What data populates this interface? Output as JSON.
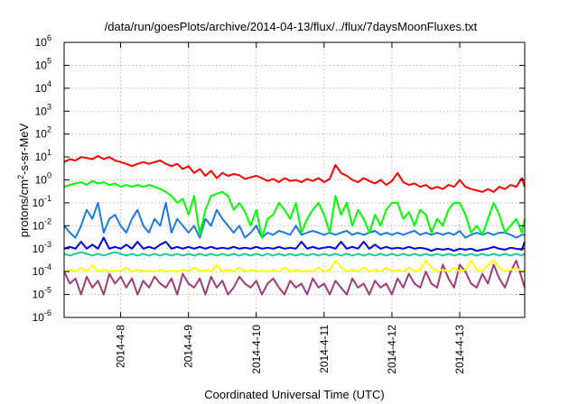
{
  "chart_data": {
    "type": "line",
    "title": "/data/run/goesPlots/archive/2014-04-13/flux/../flux/7daysMoonFluxes.txt",
    "xlabel": "Coordinated Universal Time (UTC)",
    "ylabel": {
      "base": "protons/cm",
      "sup": "2",
      "rest": "-s-sr-MeV"
    },
    "y_scale": "log",
    "y_exponent_range": [
      -6,
      6
    ],
    "x_range": [
      "2014-04-07T04:00",
      "2014-04-13T23:00"
    ],
    "x_ticks": [
      {
        "label": "2014-4-8",
        "date": "2014-04-08"
      },
      {
        "label": "2014-4-9",
        "date": "2014-04-09"
      },
      {
        "label": "2014-4-10",
        "date": "2014-04-10"
      },
      {
        "label": "2014-4-11",
        "date": "2014-04-11"
      },
      {
        "label": "2014-4-12",
        "date": "2014-04-12"
      },
      {
        "label": "2014-4-13",
        "date": "2014-04-13"
      }
    ],
    "y_ticks": [
      {
        "base": "10",
        "exp": "6"
      },
      {
        "base": "10",
        "exp": "5"
      },
      {
        "base": "10",
        "exp": "4"
      },
      {
        "base": "10",
        "exp": "3"
      },
      {
        "base": "10",
        "exp": "2"
      },
      {
        "base": "10",
        "exp": "1"
      },
      {
        "base": "10",
        "exp": "0"
      },
      {
        "base": "10",
        "exp": "-1"
      },
      {
        "base": "10",
        "exp": "-2"
      },
      {
        "base": "10",
        "exp": "-3"
      },
      {
        "base": "10",
        "exp": "-4"
      },
      {
        "base": "10",
        "exp": "-5"
      },
      {
        "base": "10",
        "exp": "-6"
      }
    ],
    "grid": true,
    "x": [
      "2014-04-07T04:00",
      "2014-04-07T06:00",
      "2014-04-07T08:00",
      "2014-04-07T10:00",
      "2014-04-07T12:00",
      "2014-04-07T14:00",
      "2014-04-07T16:00",
      "2014-04-07T18:00",
      "2014-04-07T20:00",
      "2014-04-07T22:00",
      "2014-04-08T00:00",
      "2014-04-08T02:00",
      "2014-04-08T04:00",
      "2014-04-08T06:00",
      "2014-04-08T08:00",
      "2014-04-08T10:00",
      "2014-04-08T12:00",
      "2014-04-08T14:00",
      "2014-04-08T16:00",
      "2014-04-08T18:00",
      "2014-04-08T20:00",
      "2014-04-08T22:00",
      "2014-04-09T00:00",
      "2014-04-09T02:00",
      "2014-04-09T04:00",
      "2014-04-09T06:00",
      "2014-04-09T08:00",
      "2014-04-09T10:00",
      "2014-04-09T12:00",
      "2014-04-09T14:00",
      "2014-04-09T16:00",
      "2014-04-09T18:00",
      "2014-04-09T20:00",
      "2014-04-09T22:00",
      "2014-04-10T00:00",
      "2014-04-10T02:00",
      "2014-04-10T04:00",
      "2014-04-10T06:00",
      "2014-04-10T08:00",
      "2014-04-10T10:00",
      "2014-04-10T12:00",
      "2014-04-10T14:00",
      "2014-04-10T16:00",
      "2014-04-10T18:00",
      "2014-04-10T20:00",
      "2014-04-10T22:00",
      "2014-04-11T00:00",
      "2014-04-11T02:00",
      "2014-04-11T04:00",
      "2014-04-11T06:00",
      "2014-04-11T08:00",
      "2014-04-11T10:00",
      "2014-04-11T12:00",
      "2014-04-11T14:00",
      "2014-04-11T16:00",
      "2014-04-11T18:00",
      "2014-04-11T20:00",
      "2014-04-11T22:00",
      "2014-04-12T00:00",
      "2014-04-12T02:00",
      "2014-04-12T04:00",
      "2014-04-12T06:00",
      "2014-04-12T08:00",
      "2014-04-12T10:00",
      "2014-04-12T12:00",
      "2014-04-12T14:00",
      "2014-04-12T16:00",
      "2014-04-12T18:00",
      "2014-04-12T20:00",
      "2014-04-12T22:00",
      "2014-04-13T00:00",
      "2014-04-13T02:00",
      "2014-04-13T04:00",
      "2014-04-13T06:00",
      "2014-04-13T08:00",
      "2014-04-13T10:00",
      "2014-04-13T12:00",
      "2014-04-13T14:00",
      "2014-04-13T16:00",
      "2014-04-13T18:00",
      "2014-04-13T20:00",
      "2014-04-13T22:00",
      "2014-04-13T23:00"
    ],
    "series": [
      {
        "color": "#ff0000",
        "values": [
          6,
          8,
          7,
          10,
          9,
          8,
          11,
          8,
          10,
          7,
          6,
          5,
          4,
          5,
          6,
          5,
          6,
          7,
          5,
          4,
          5,
          3,
          4,
          2,
          3,
          1.5,
          2.5,
          1.2,
          2,
          1.5,
          1.8,
          1.6,
          1.1,
          1.3,
          1.5,
          1.2,
          0.9,
          1.1,
          0.8,
          1.2,
          0.9,
          1.0,
          0.8,
          1.1,
          0.9,
          1.2,
          0.8,
          1.1,
          4.5,
          2.0,
          1.5,
          1.0,
          0.8,
          1.2,
          0.9,
          0.7,
          1.0,
          0.6,
          0.9,
          2.0,
          0.8,
          0.6,
          0.7,
          0.5,
          0.6,
          0.4,
          0.5,
          0.4,
          0.6,
          0.5,
          1.0,
          0.5,
          0.4,
          0.35,
          0.3,
          0.4,
          0.3,
          0.5,
          0.4,
          0.6,
          0.5,
          1.2,
          0.5
        ]
      },
      {
        "color": "#00ff00",
        "values": [
          0.5,
          0.6,
          0.7,
          0.8,
          0.6,
          0.9,
          0.7,
          0.8,
          0.6,
          0.7,
          0.5,
          0.6,
          0.5,
          0.6,
          0.5,
          0.6,
          0.5,
          0.4,
          0.3,
          0.2,
          0.1,
          0.15,
          0.03,
          0.2,
          0.004,
          0.05,
          0.2,
          0.25,
          0.3,
          0.2,
          0.05,
          0.1,
          0.04,
          0.01,
          0.05,
          0.003,
          0.02,
          0.03,
          0.1,
          0.05,
          0.02,
          0.1,
          0.005,
          0.02,
          0.05,
          0.1,
          0.03,
          0.005,
          0.2,
          0.03,
          0.1,
          0.01,
          0.05,
          0.02,
          0.005,
          0.03,
          0.01,
          0.05,
          0.1,
          0.1,
          0.02,
          0.04,
          0.01,
          0.05,
          0.03,
          0.005,
          0.02,
          0.01,
          0.05,
          0.1,
          0.1,
          0.03,
          0.005,
          0.01,
          0.004,
          0.02,
          0.1,
          0.03,
          0.005,
          0.01,
          0.02,
          0.005,
          0.02
        ]
      },
      {
        "color": "#1e78e6",
        "values": [
          0.01,
          0.005,
          0.003,
          0.01,
          0.05,
          0.02,
          0.1,
          0.005,
          0.02,
          0.03,
          0.01,
          0.005,
          0.02,
          0.05,
          0.01,
          0.005,
          0.02,
          0.01,
          0.1,
          0.005,
          0.02,
          0.01,
          0.005,
          0.01,
          0.003,
          0.02,
          0.01,
          0.05,
          0.02,
          0.01,
          0.005,
          0.01,
          0.003,
          0.005,
          0.01,
          0.003,
          0.005,
          0.004,
          0.006,
          0.005,
          0.004,
          0.01,
          0.004,
          0.005,
          0.006,
          0.005,
          0.004,
          0.005,
          0.004,
          0.005,
          0.006,
          0.004,
          0.005,
          0.004,
          0.005,
          0.006,
          0.004,
          0.005,
          0.004,
          0.005,
          0.004,
          0.005,
          0.006,
          0.004,
          0.005,
          0.004,
          0.005,
          0.004,
          0.005,
          0.004,
          0.006,
          0.003,
          0.004,
          0.005,
          0.004,
          0.005,
          0.004,
          0.005,
          0.005,
          0.004,
          0.003,
          0.004,
          0.004
        ]
      },
      {
        "color": "#0000dc",
        "values": [
          0.001,
          0.0012,
          0.001,
          0.002,
          0.001,
          0.0015,
          0.001,
          0.003,
          0.001,
          0.0012,
          0.001,
          0.0015,
          0.001,
          0.002,
          0.001,
          0.0012,
          0.001,
          0.0015,
          0.002,
          0.001,
          0.0012,
          0.001,
          0.0012,
          0.001,
          0.0012,
          0.001,
          0.0012,
          0.001,
          0.0011,
          0.001,
          0.0012,
          0.001,
          0.0011,
          0.001,
          0.0012,
          0.001,
          0.0011,
          0.001,
          0.0012,
          0.001,
          0.0011,
          0.001,
          0.002,
          0.001,
          0.0012,
          0.001,
          0.0011,
          0.0012,
          0.001,
          0.002,
          0.001,
          0.0012,
          0.001,
          0.002,
          0.001,
          0.0015,
          0.001,
          0.0012,
          0.001,
          0.0011,
          0.001,
          0.0012,
          0.001,
          0.0011,
          0.001,
          0.0008,
          0.001,
          0.0009,
          0.001,
          0.0008,
          0.001,
          0.0009,
          0.001,
          0.0008,
          0.0009,
          0.001,
          0.0012,
          0.001,
          0.0009,
          0.0011,
          0.001,
          0.0009,
          0.002
        ]
      },
      {
        "color": "#1ec896",
        "values": [
          0.0006,
          0.0005,
          0.0006,
          0.0007,
          0.0006,
          0.0005,
          0.0006,
          0.0005,
          0.0006,
          0.0007,
          0.0006,
          0.0005,
          0.0006,
          0.0005,
          0.0006,
          0.0005,
          0.0006,
          0.0005,
          0.0006,
          0.0005,
          0.0006,
          0.0005,
          0.0006,
          0.0005,
          0.0006,
          0.0005,
          0.0006,
          0.0005,
          0.0006,
          0.0005,
          0.0006,
          0.0005,
          0.0006,
          0.0005,
          0.0006,
          0.0005,
          0.0006,
          0.0005,
          0.0006,
          0.0005,
          0.0006,
          0.0005,
          0.0006,
          0.0005,
          0.0006,
          0.0005,
          0.0006,
          0.0005,
          0.0006,
          0.0005,
          0.0006,
          0.0005,
          0.0006,
          0.0005,
          0.0006,
          0.0005,
          0.0006,
          0.0005,
          0.0006,
          0.0005,
          0.0006,
          0.0005,
          0.0006,
          0.0005,
          0.0006,
          0.0005,
          0.0006,
          0.0005,
          0.0006,
          0.0005,
          0.0006,
          0.0005,
          0.0006,
          0.0005,
          0.0006,
          0.0005,
          0.0006,
          0.0005,
          0.0006,
          0.0005,
          0.0006,
          0.0005,
          0.0006
        ]
      },
      {
        "color": "#ffff00",
        "values": [
          0.0001,
          0.00012,
          0.0001,
          0.00015,
          0.0001,
          0.0002,
          0.0001,
          0.00012,
          0.0001,
          0.00011,
          0.0001,
          0.00015,
          0.0001,
          0.00012,
          0.0001,
          0.00011,
          0.0001,
          0.00012,
          0.0001,
          0.00011,
          0.0001,
          0.00012,
          0.0001,
          0.00015,
          0.0001,
          0.00012,
          0.0001,
          0.0002,
          0.0001,
          0.00012,
          0.0001,
          0.00015,
          0.0001,
          0.00012,
          0.0001,
          0.00011,
          0.0001,
          0.00012,
          0.0001,
          0.00015,
          0.0001,
          0.00012,
          0.0001,
          0.00011,
          0.0001,
          0.00015,
          0.0001,
          0.00012,
          0.0003,
          0.00015,
          0.0001,
          0.00012,
          0.0001,
          0.00015,
          0.0001,
          0.00012,
          0.0001,
          0.00015,
          0.0001,
          0.00012,
          0.0001,
          0.00015,
          0.0001,
          0.00012,
          0.0003,
          0.00015,
          0.0001,
          0.00012,
          0.0001,
          0.00015,
          0.0001,
          0.00012,
          0.0003,
          0.00012,
          0.0001,
          0.0002,
          0.0003,
          0.00015,
          0.0001,
          0.00012,
          0.00015,
          0.0001,
          0.00012
        ]
      },
      {
        "color": "#a03c78",
        "values": [
          0.0001,
          3e-05,
          5e-05,
          1e-05,
          6e-05,
          2e-05,
          4e-05,
          1e-05,
          8e-05,
          3e-05,
          6e-05,
          2e-05,
          5e-05,
          1e-05,
          4e-05,
          2e-05,
          6e-05,
          3e-05,
          2e-05,
          5e-05,
          1e-05,
          8e-05,
          3e-05,
          2e-05,
          5e-05,
          1e-05,
          6e-05,
          2e-05,
          4e-05,
          1e-05,
          2e-05,
          6e-05,
          3e-05,
          2e-05,
          4e-05,
          1e-05,
          3e-05,
          5e-05,
          2e-05,
          1e-05,
          4e-05,
          2e-05,
          3e-05,
          1e-05,
          5e-05,
          2e-05,
          3e-05,
          1e-05,
          4e-05,
          2e-05,
          1e-05,
          5e-05,
          2e-05,
          3e-05,
          1e-05,
          4e-05,
          2e-05,
          3e-05,
          1e-05,
          5e-05,
          2e-05,
          8e-05,
          3e-05,
          2e-05,
          0.0001,
          3e-05,
          2e-05,
          0.0002,
          5e-05,
          2e-05,
          0.0002,
          0.0001,
          3e-05,
          2e-05,
          8e-05,
          3e-05,
          0.0002,
          5e-05,
          2e-05,
          0.0001,
          0.0003,
          5e-05,
          2e-05
        ]
      }
    ]
  }
}
